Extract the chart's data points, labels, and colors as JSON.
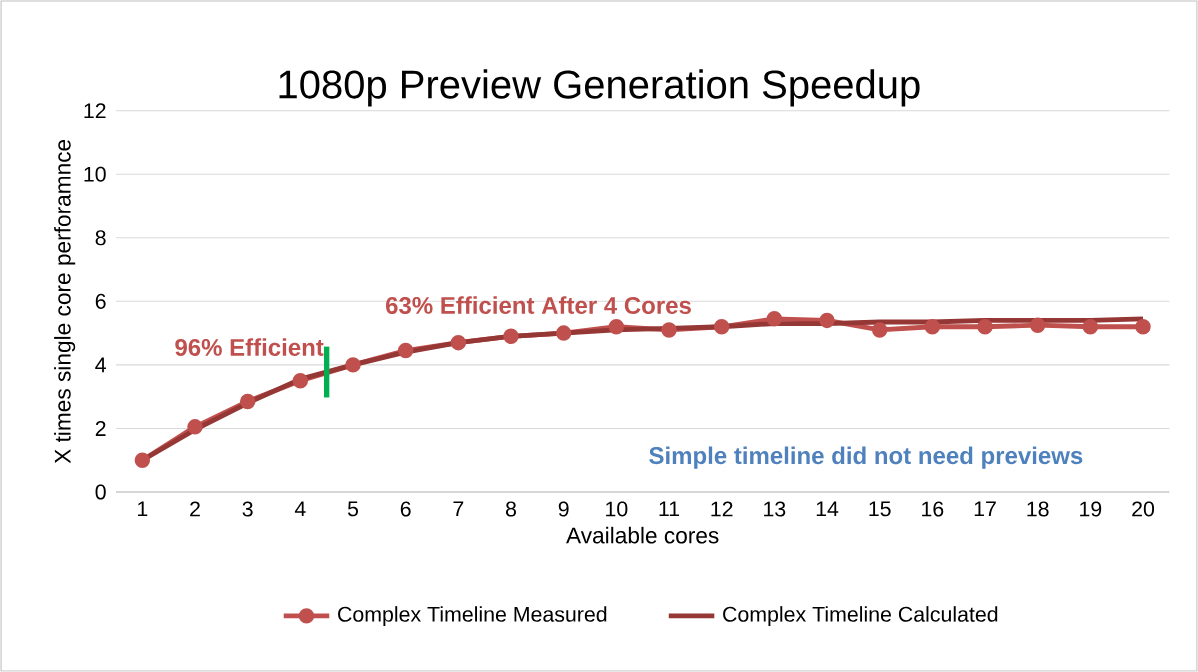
{
  "chart_data": {
    "type": "line",
    "title": "1080p Preview Generation Speedup",
    "xlabel": "Available cores",
    "ylabel": "X times single core perforamnce",
    "x": [
      1,
      2,
      3,
      4,
      5,
      6,
      7,
      8,
      9,
      10,
      11,
      12,
      13,
      14,
      15,
      16,
      17,
      18,
      19,
      20
    ],
    "xlim": [
      0.5,
      20.5
    ],
    "xticks": [
      1,
      2,
      3,
      4,
      5,
      6,
      7,
      8,
      9,
      10,
      11,
      12,
      13,
      14,
      15,
      16,
      17,
      18,
      19,
      20
    ],
    "ylim": [
      0,
      12
    ],
    "yticks": [
      0,
      2,
      4,
      6,
      8,
      10,
      12
    ],
    "grid": "y",
    "legend": "bottom",
    "line_style": "solid",
    "series": [
      {
        "name": "Complex Timeline Measured",
        "color": "#c0504d",
        "marker": "circle",
        "values": [
          1.0,
          2.05,
          2.85,
          3.5,
          4.0,
          4.45,
          4.7,
          4.9,
          5.0,
          5.2,
          5.1,
          5.2,
          5.45,
          5.4,
          5.1,
          5.2,
          5.2,
          5.25,
          5.2,
          5.2
        ]
      },
      {
        "name": "Complex Timeline Calculated",
        "color": "#953735",
        "marker": "none",
        "values": [
          1.0,
          1.96,
          2.8,
          3.55,
          4.0,
          4.4,
          4.7,
          4.9,
          5.0,
          5.1,
          5.15,
          5.2,
          5.3,
          5.3,
          5.35,
          5.35,
          5.4,
          5.4,
          5.4,
          5.45
        ]
      }
    ],
    "ref_lines": [
      {
        "axis": "x",
        "value": 4.5,
        "color": "#00b050"
      }
    ],
    "annotations": [
      "96% Efficient",
      "63% Efficient After 4 Cores",
      "Simple timeline did not need previews"
    ]
  }
}
